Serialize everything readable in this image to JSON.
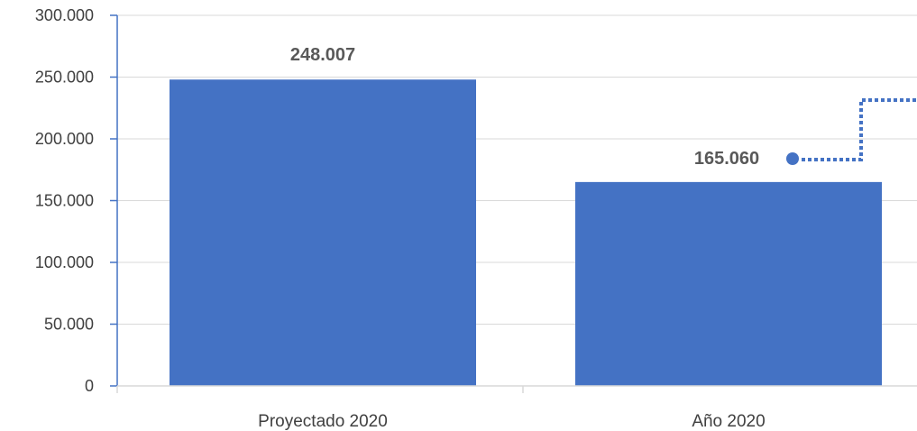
{
  "chart_data": {
    "type": "bar",
    "title": "",
    "xlabel": "",
    "ylabel": "",
    "categories": [
      "Proyectado 2020",
      "Año 2020"
    ],
    "values": [
      248007,
      165060
    ],
    "value_labels": [
      "248.007",
      "165.060"
    ],
    "ylim": [
      0,
      300000
    ],
    "yticks": [
      0,
      50000,
      100000,
      150000,
      200000,
      250000,
      300000
    ],
    "ytick_labels": [
      "0",
      "50.000",
      "100.000",
      "150.000",
      "200.000",
      "250.000",
      "300.000"
    ],
    "grid": true,
    "legend": "none",
    "bar_color": "#4472C4",
    "axis_color": "#4472C4",
    "grid_color": "#D9D9D9",
    "callout": {
      "attached_to": "Año 2020",
      "style": "dotted",
      "color": "#4472C4"
    }
  }
}
